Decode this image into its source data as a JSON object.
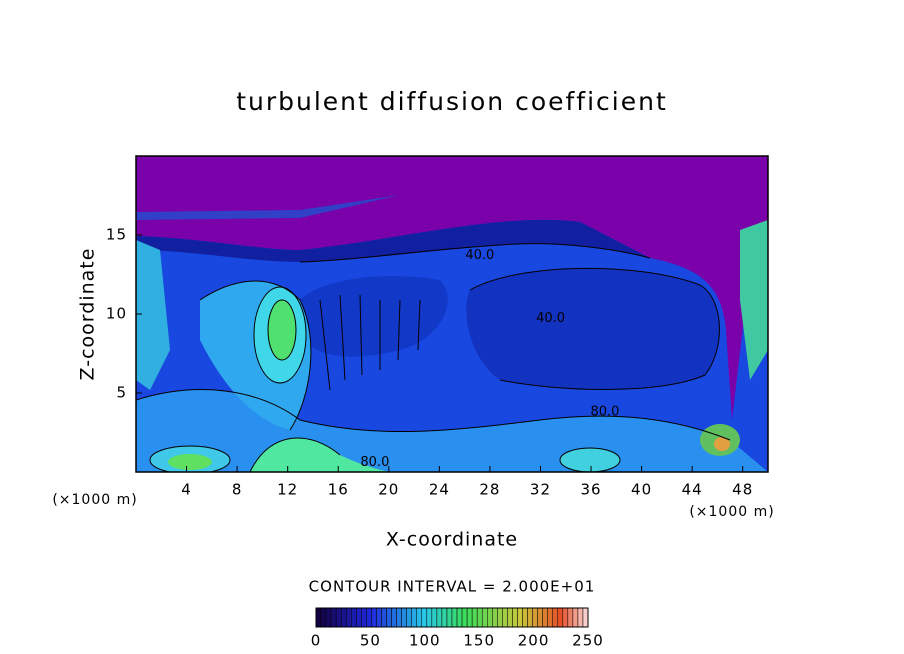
{
  "chart_data": {
    "type": "contour",
    "title": "turbulent diffusion coefficient",
    "xlabel": "X-coordinate",
    "ylabel": "Z-coordinate",
    "xunit": "(×1000 m)",
    "yunit": "(×1000 m)",
    "xlim": [
      0,
      50
    ],
    "xticks": [
      4,
      8,
      12,
      16,
      20,
      24,
      28,
      32,
      36,
      40,
      44,
      48
    ],
    "ylim": [
      0,
      20
    ],
    "yticks": [
      5,
      10,
      15
    ],
    "contour_labels": [
      {
        "value": 40,
        "label": "40.0",
        "x": 27.2,
        "y": 13.7
      },
      {
        "value": 40,
        "label": "40.0",
        "x": 32.8,
        "y": 9.7
      },
      {
        "value": 80,
        "label": "80.0",
        "x": 37.1,
        "y": 3.8
      },
      {
        "value": 80,
        "label": "80.0",
        "x": 18.9,
        "y": 0.6
      }
    ],
    "colorbar": {
      "label": "CONTOUR INTERVAL = 2.000E+01",
      "lim": [
        0,
        250
      ],
      "ticks": [
        0,
        50,
        100,
        150,
        200,
        250
      ]
    }
  }
}
